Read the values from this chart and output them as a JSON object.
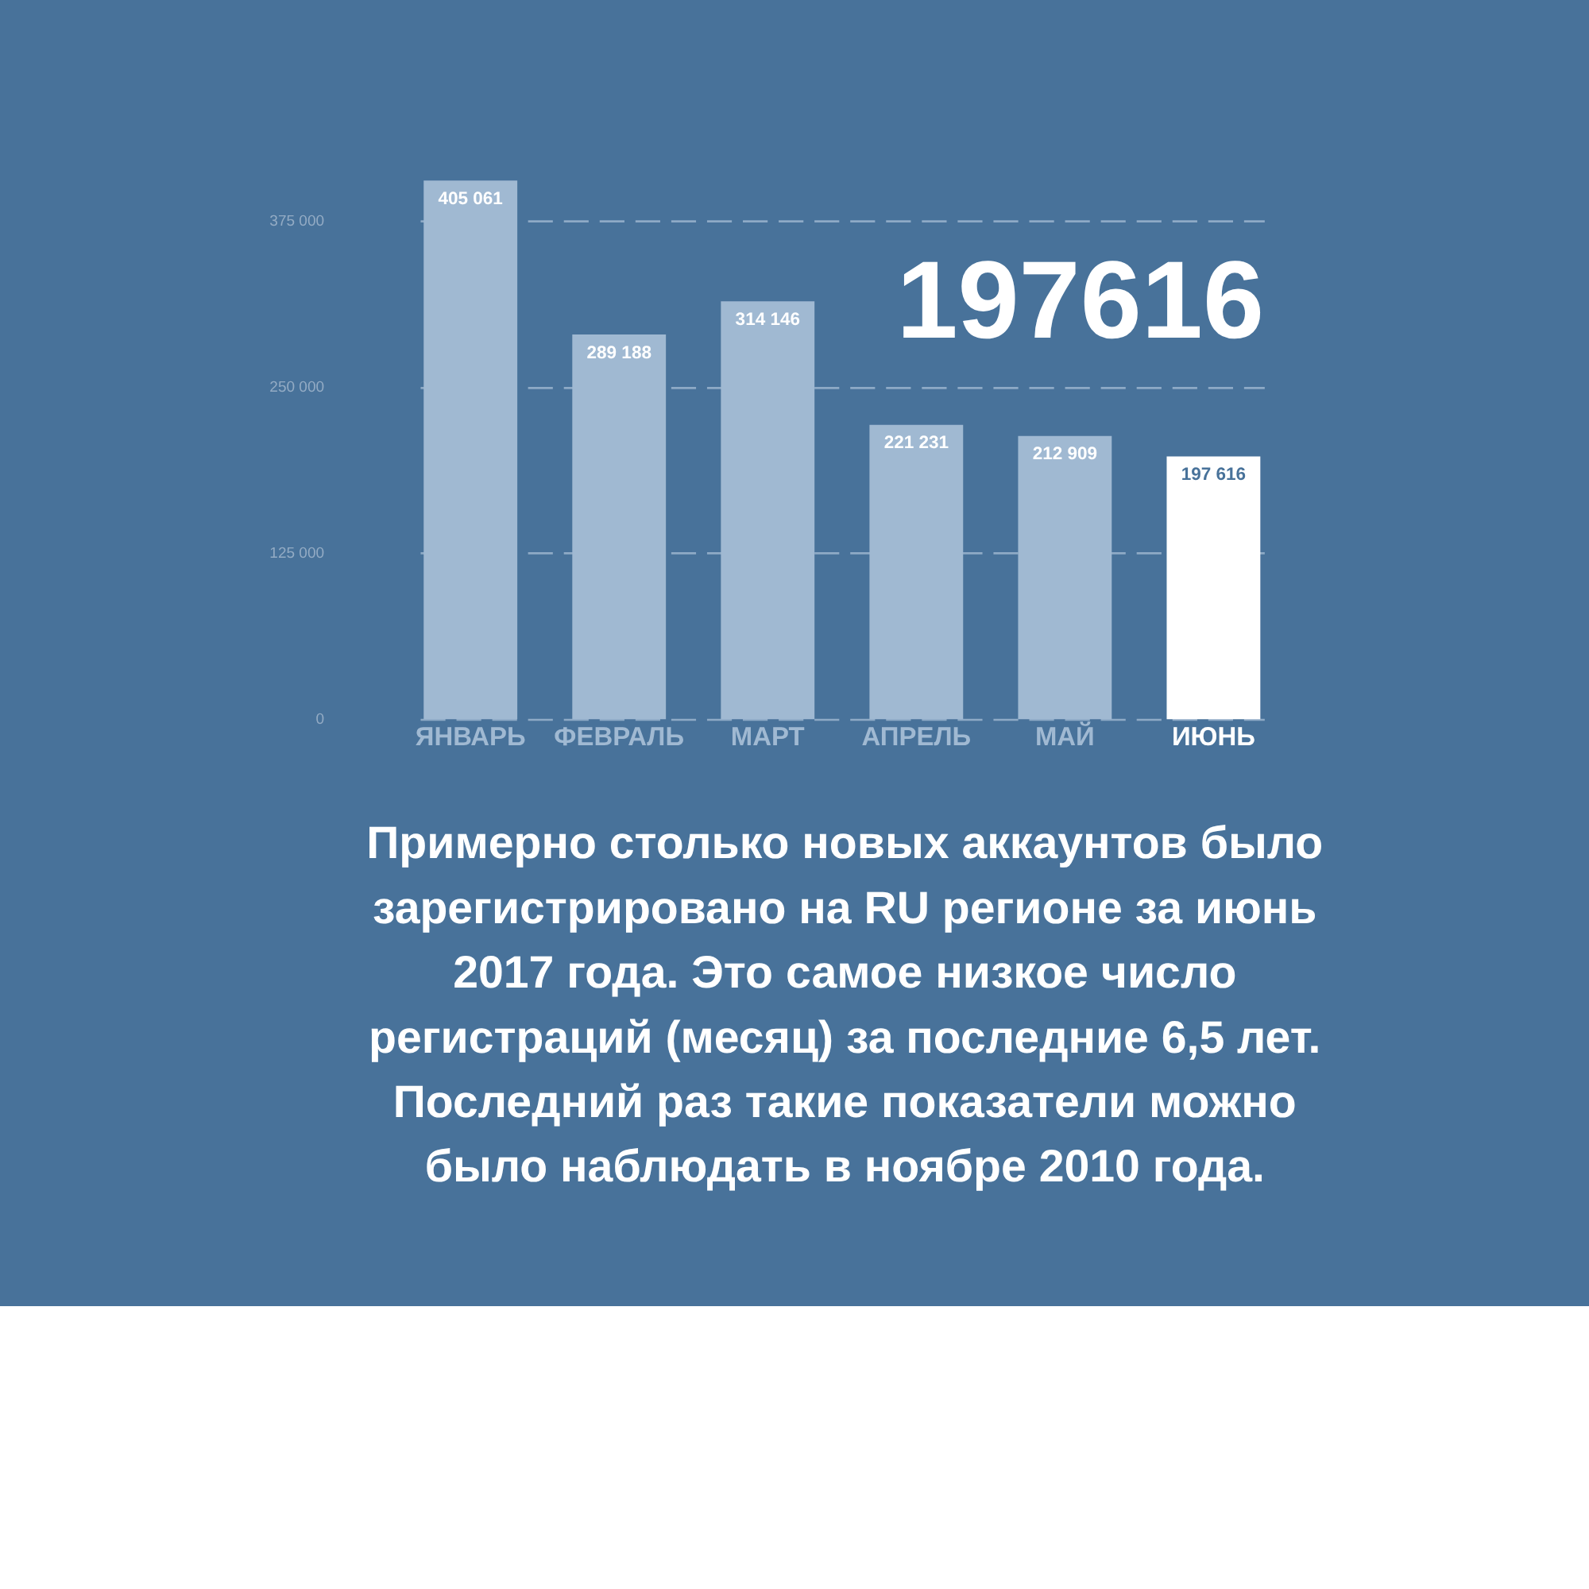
{
  "chart_data": {
    "type": "bar",
    "categories": [
      "ЯНВАРЬ",
      "ФЕВРАЛЬ",
      "МАРТ",
      "АПРЕЛЬ",
      "МАЙ",
      "ИЮНЬ"
    ],
    "values": [
      405061,
      289188,
      314146,
      221231,
      212909,
      197616
    ],
    "colors": [
      "#a0b9d2",
      "#a0b9d2",
      "#a0b9d2",
      "#a0b9d2",
      "#a0b9d2",
      "#ffffff"
    ],
    "value_labels": [
      "405 061",
      "289 188",
      "314 146",
      "221 231",
      "212 909",
      "197 616"
    ],
    "ylim": [
      0,
      410000
    ],
    "yticks": [
      {
        "value": 0,
        "label": "0"
      },
      {
        "value": 125000,
        "label": "125 000"
      },
      {
        "value": 250000,
        "label": "250 000"
      },
      {
        "value": 375000,
        "label": "375 000"
      }
    ],
    "grid": "y",
    "annotations": [
      "197616",
      "Примерно столько новых аккаунтов было\nзарегистрировано на RU регионе за июнь\n2017 года. Это самое низкое число\nрегистраций (месяц) за последние 6,5 лет.\nПоследний раз такие показатели можно\nбыло наблюдать в ноябре 2010 года."
    ]
  }
}
